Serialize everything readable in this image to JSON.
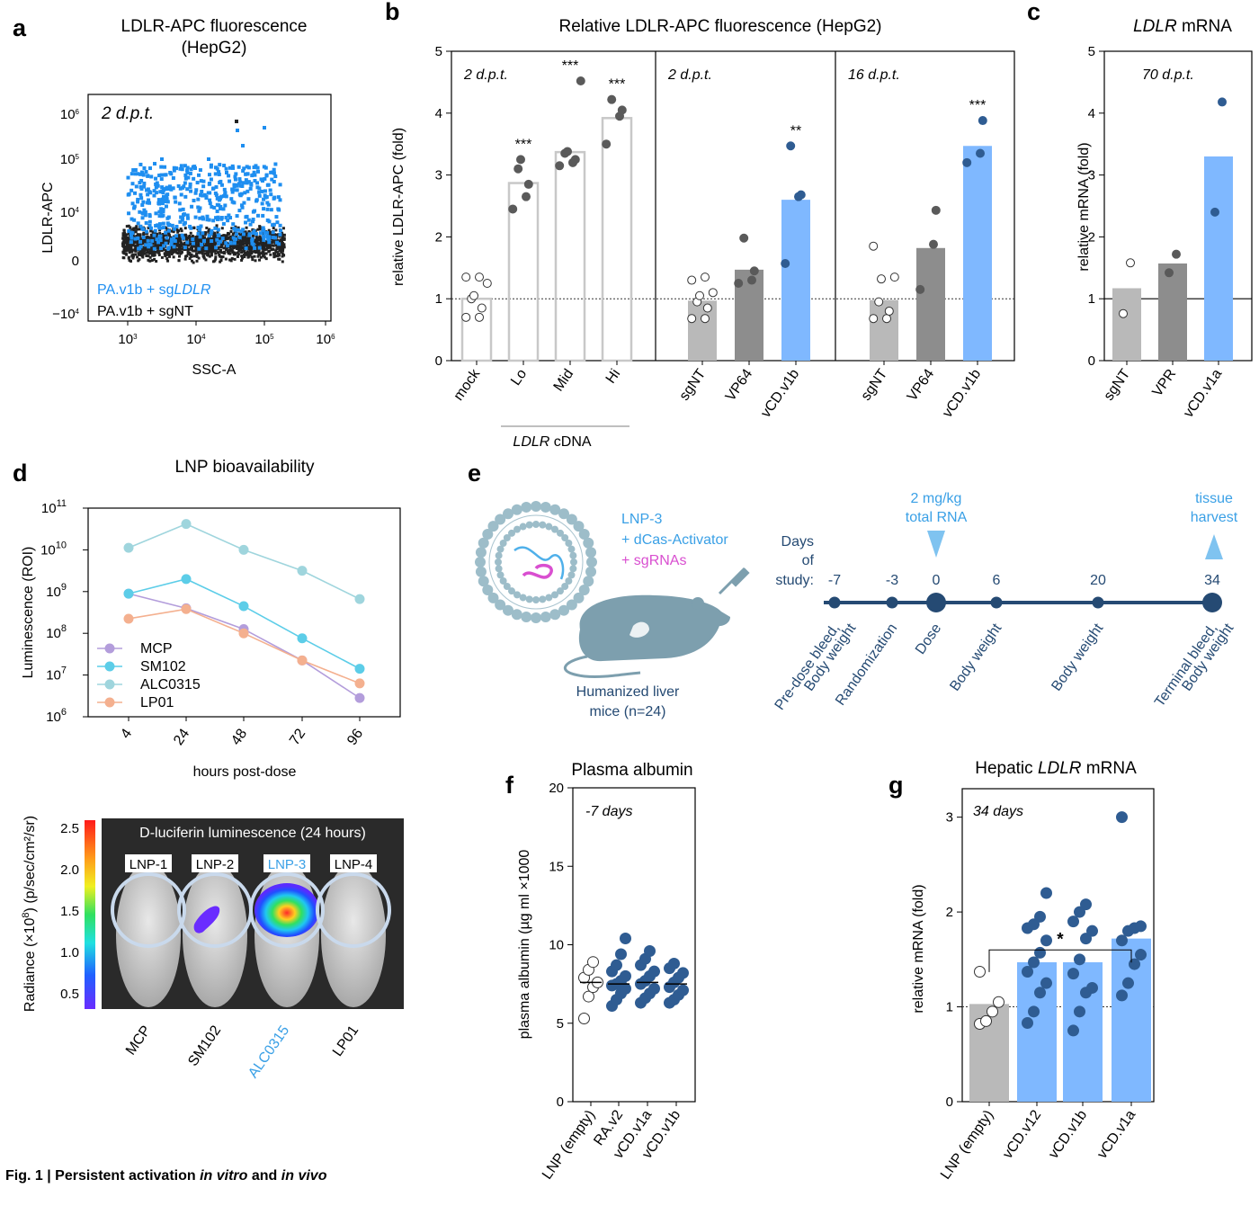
{
  "figure_caption": {
    "prefix": "Fig. 1 | Persistent activation ",
    "in_vitro": "in vitro",
    "and": " and ",
    "in_vivo": "in vivo"
  },
  "colors": {
    "blue_light": "#7fb8ff",
    "blue_dark": "#2f5c92",
    "blue_flow": "#1e8ef0",
    "gray_light": "#b9b9b9",
    "gray_mid": "#8d8d8d",
    "gray_dark": "#5a5a5a",
    "timeline": "#254a73",
    "accent": "#3aa0e6",
    "pink": "#d94fd0"
  },
  "panel_a": {
    "letter": "a",
    "title_line1": "LDLR-APC fluorescence",
    "title_line2": "(HepG2)",
    "annotation": "2 d.p.t.",
    "ylabel": "LDLR-APC",
    "xlabel": "SSC-A",
    "legend_blue_prefix": "PA.v1b + sg",
    "legend_blue_gene": "LDLR",
    "legend_black": "PA.v1b + sgNT",
    "y_ticks": [
      {
        "t": "10",
        "e": "6"
      },
      {
        "t": "10",
        "e": "5"
      },
      {
        "t": "10",
        "e": "4"
      },
      {
        "t": "0",
        "e": ""
      },
      {
        "t": "−10",
        "e": "4"
      }
    ],
    "x_ticks": [
      {
        "t": "10",
        "e": "3"
      },
      {
        "t": "10",
        "e": "4"
      },
      {
        "t": "10",
        "e": "5"
      },
      {
        "t": "10",
        "e": "6"
      }
    ]
  },
  "chart_data": [
    {
      "id": "b",
      "type": "bar",
      "letter": "b",
      "title": "Relative LDLR-APC fluorescence (HepG2)",
      "ylabel": "relative LDLR-APC (fold)",
      "ylim": [
        0,
        5
      ],
      "yticks": [
        "0",
        "1",
        "2",
        "3",
        "4",
        "5"
      ],
      "reference_line": 1,
      "subpanels": [
        {
          "annotation": "2 d.p.t.",
          "bars": [
            {
              "label": "mock",
              "value": 1.0,
              "style": "open",
              "points": [
                0.7,
                0.7,
                0.85,
                1.0,
                1.05,
                1.25,
                1.35,
                1.35
              ],
              "sig": ""
            },
            {
              "label": "Lo",
              "value": 2.87,
              "style": "open",
              "points": [
                2.45,
                2.65,
                2.85,
                3.1,
                3.25
              ],
              "sig": "***"
            },
            {
              "label": "Mid",
              "value": 3.37,
              "style": "open",
              "points": [
                3.15,
                3.2,
                3.25,
                3.35,
                3.38,
                4.52
              ],
              "sig": "***"
            },
            {
              "label": "Hi",
              "value": 3.92,
              "style": "open",
              "points": [
                3.5,
                3.95,
                4.05,
                4.22
              ],
              "sig": "***"
            }
          ],
          "group_label_prefix": "LDLR",
          "group_label_suffix": " cDNA"
        },
        {
          "annotation": "2 d.p.t.",
          "bars": [
            {
              "label": "sgNT",
              "value": 0.97,
              "style": "lightgray",
              "points": [
                0.68,
                0.68,
                0.85,
                0.95,
                1.05,
                1.1,
                1.3,
                1.35
              ],
              "sig": ""
            },
            {
              "label": "VP64",
              "value": 1.47,
              "style": "midgray",
              "points": [
                1.25,
                1.3,
                1.45,
                1.98
              ],
              "sig": ""
            },
            {
              "label": "vCD.v1b",
              "value": 2.6,
              "style": "blue",
              "points": [
                1.57,
                2.65,
                2.68,
                3.47
              ],
              "sig": "**"
            }
          ]
        },
        {
          "annotation": "16 d.p.t.",
          "bars": [
            {
              "label": "sgNT",
              "value": 0.98,
              "style": "lightgray",
              "points": [
                0.68,
                0.68,
                0.8,
                0.95,
                1.32,
                1.35,
                1.85
              ],
              "sig": ""
            },
            {
              "label": "VP64",
              "value": 1.82,
              "style": "midgray",
              "points": [
                1.15,
                1.88,
                2.43
              ],
              "sig": ""
            },
            {
              "label": "vCD.v1b",
              "value": 3.47,
              "style": "blue",
              "points": [
                3.2,
                3.35,
                3.88
              ],
              "sig": "***"
            }
          ]
        }
      ]
    },
    {
      "id": "c",
      "type": "bar",
      "letter": "c",
      "title_gene": "LDLR",
      "title_suffix": " mRNA",
      "ylabel": "relative mRNA (fold)",
      "ylim": [
        0,
        5
      ],
      "yticks": [
        "0",
        "1",
        "2",
        "3",
        "4",
        "5"
      ],
      "reference_line": 1,
      "annotation": "70 d.p.t.",
      "bars": [
        {
          "label": "sgNT",
          "value": 1.17,
          "style": "lightgray",
          "points": [
            0.76,
            1.58
          ]
        },
        {
          "label": "VPR",
          "value": 1.57,
          "style": "midgray",
          "points": [
            1.42,
            1.72
          ]
        },
        {
          "label": "vCD.v1a",
          "value": 3.3,
          "style": "blue",
          "points": [
            2.4,
            4.18
          ]
        }
      ]
    },
    {
      "id": "d",
      "type": "line",
      "letter": "d",
      "title": "LNP bioavailability",
      "ylabel": "Luminescence (ROI)",
      "xlabel": "hours post-dose",
      "yscale": "log",
      "ylim_exp": [
        6,
        11
      ],
      "ytick_exponents": [
        "6",
        "7",
        "8",
        "9",
        "10",
        "11"
      ],
      "categories": [
        "4",
        "24",
        "48",
        "72",
        "96"
      ],
      "series": [
        {
          "name": "MCP",
          "color": "#b39ddb",
          "log10": [
            8.95,
            8.6,
            8.1,
            7.35,
            6.45
          ]
        },
        {
          "name": "SM102",
          "color": "#5ccde8",
          "log10": [
            8.95,
            9.3,
            8.65,
            7.88,
            7.15
          ]
        },
        {
          "name": "ALC0315",
          "color": "#9fd5dd",
          "log10": [
            10.05,
            10.62,
            10.0,
            9.5,
            8.82
          ]
        },
        {
          "name": "LP01",
          "color": "#f4b08f",
          "log10": [
            8.35,
            8.58,
            8.0,
            7.35,
            6.8
          ]
        }
      ]
    },
    {
      "id": "f",
      "type": "scatter",
      "letter": "f",
      "title": "Plasma albumin",
      "ylabel": "plasma albumin (µg ml ×1000",
      "ylim": [
        0,
        20
      ],
      "yticks": [
        "0",
        "5",
        "10",
        "15",
        "20"
      ],
      "annotation": "-7 days",
      "groups": [
        {
          "label": "LNP (empty)",
          "style": "open",
          "mean": 7.6,
          "points": [
            5.3,
            6.7,
            7.3,
            7.6,
            7.9,
            8.4,
            8.9
          ]
        },
        {
          "label": "RA.v2",
          "style": "filled",
          "mean": 7.5,
          "points": [
            6.1,
            6.5,
            6.9,
            7.2,
            7.4,
            7.5,
            7.7,
            8.0,
            8.3,
            8.7,
            9.4,
            10.4
          ]
        },
        {
          "label": "vCD.v1a",
          "style": "filled",
          "mean": 7.6,
          "points": [
            6.3,
            6.6,
            6.9,
            7.2,
            7.5,
            7.7,
            8.0,
            8.3,
            8.7,
            9.1,
            9.6
          ]
        },
        {
          "label": "vCD.v1b",
          "style": "filled",
          "mean": 7.5,
          "points": [
            6.3,
            6.5,
            6.8,
            7.1,
            7.3,
            7.6,
            7.9,
            8.2,
            8.5,
            8.8
          ]
        }
      ]
    },
    {
      "id": "g",
      "type": "bar",
      "letter": "g",
      "title_prefix": "Hepatic ",
      "title_gene": "LDLR",
      "title_suffix": " mRNA",
      "ylabel": "relative mRNA (fold)",
      "ylim": [
        0,
        3.3
      ],
      "yticks": [
        "0",
        "1",
        "2",
        "3"
      ],
      "reference_line": 1,
      "annotation": "34 days",
      "sig": "*",
      "bars": [
        {
          "label": "LNP (empty)",
          "value": 1.03,
          "style": "lightgray",
          "points": [
            0.82,
            0.85,
            0.95,
            1.05,
            1.37
          ]
        },
        {
          "label": "vCD.v12",
          "value": 1.47,
          "style": "blue",
          "points": [
            0.83,
            0.95,
            1.15,
            1.25,
            1.37,
            1.47,
            1.57,
            1.7,
            1.83,
            1.87,
            1.95,
            2.2
          ]
        },
        {
          "label": "vCD.v1b",
          "value": 1.47,
          "style": "blue",
          "points": [
            0.75,
            0.95,
            1.15,
            1.2,
            1.35,
            1.5,
            1.72,
            1.8,
            1.9,
            2.0,
            2.08
          ]
        },
        {
          "label": "vCD.v1a",
          "value": 1.72,
          "style": "blue",
          "points": [
            1.12,
            1.25,
            1.45,
            1.55,
            1.7,
            1.8,
            1.83,
            1.85,
            3.0
          ]
        }
      ]
    }
  ],
  "panel_d_image": {
    "title": "D-luciferin luminescence (24 hours)",
    "lnp_labels": [
      "LNP-1",
      "LNP-2",
      "LNP-3",
      "LNP-4"
    ],
    "mouse_labels": [
      "MCP",
      "SM102",
      "ALC0315",
      "LP01"
    ],
    "colorbar_ticks": [
      "2.5",
      "2.0",
      "1.5",
      "1.0",
      "0.5"
    ],
    "colorbar_label_prefix": "Radiance (×10",
    "colorbar_label_exp": "8",
    "colorbar_label_suffix": ") (p/sec/cm²/sr)"
  },
  "panel_e": {
    "letter": "e",
    "lnp_label": "LNP-3",
    "activator_label": "+ dCas-Activator",
    "sgrna_label": "+ sgRNAs",
    "mice_line1": "Humanized liver",
    "mice_line2": "mice (n=24)",
    "days_line1": "Days",
    "days_line2": "of",
    "days_line3": "study:",
    "dose_line1": "2 mg/kg",
    "dose_line2": "total RNA",
    "harvest_line1": "tissue",
    "harvest_line2": "harvest",
    "timepoints": [
      {
        "day": "-7",
        "line1": "Pre-dose bleed,",
        "line2": "Body weight"
      },
      {
        "day": "-3",
        "line1": "Randomization",
        "line2": ""
      },
      {
        "day": "0",
        "line1": "Dose",
        "line2": ""
      },
      {
        "day": "6",
        "line1": "Body weight",
        "line2": ""
      },
      {
        "day": "20",
        "line1": "Body weight",
        "line2": ""
      },
      {
        "day": "34",
        "line1": "Terminal bleed,",
        "line2": "Body weight"
      }
    ]
  }
}
